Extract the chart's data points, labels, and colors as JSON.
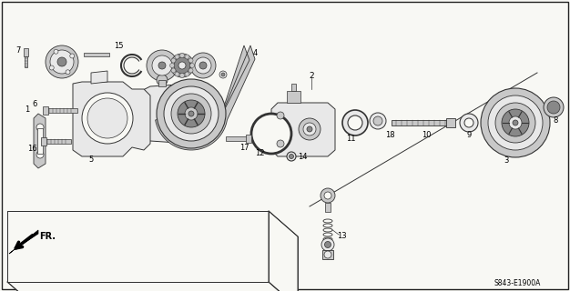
{
  "bg_color": "#f8f8f4",
  "lc": "#333333",
  "fc": "#c8c8c8",
  "dfc": "#888888",
  "lfc": "#e8e8e8",
  "wfc": "#f8f8f4",
  "catalog_code": "S843-E1900A",
  "direction_label": "FR."
}
